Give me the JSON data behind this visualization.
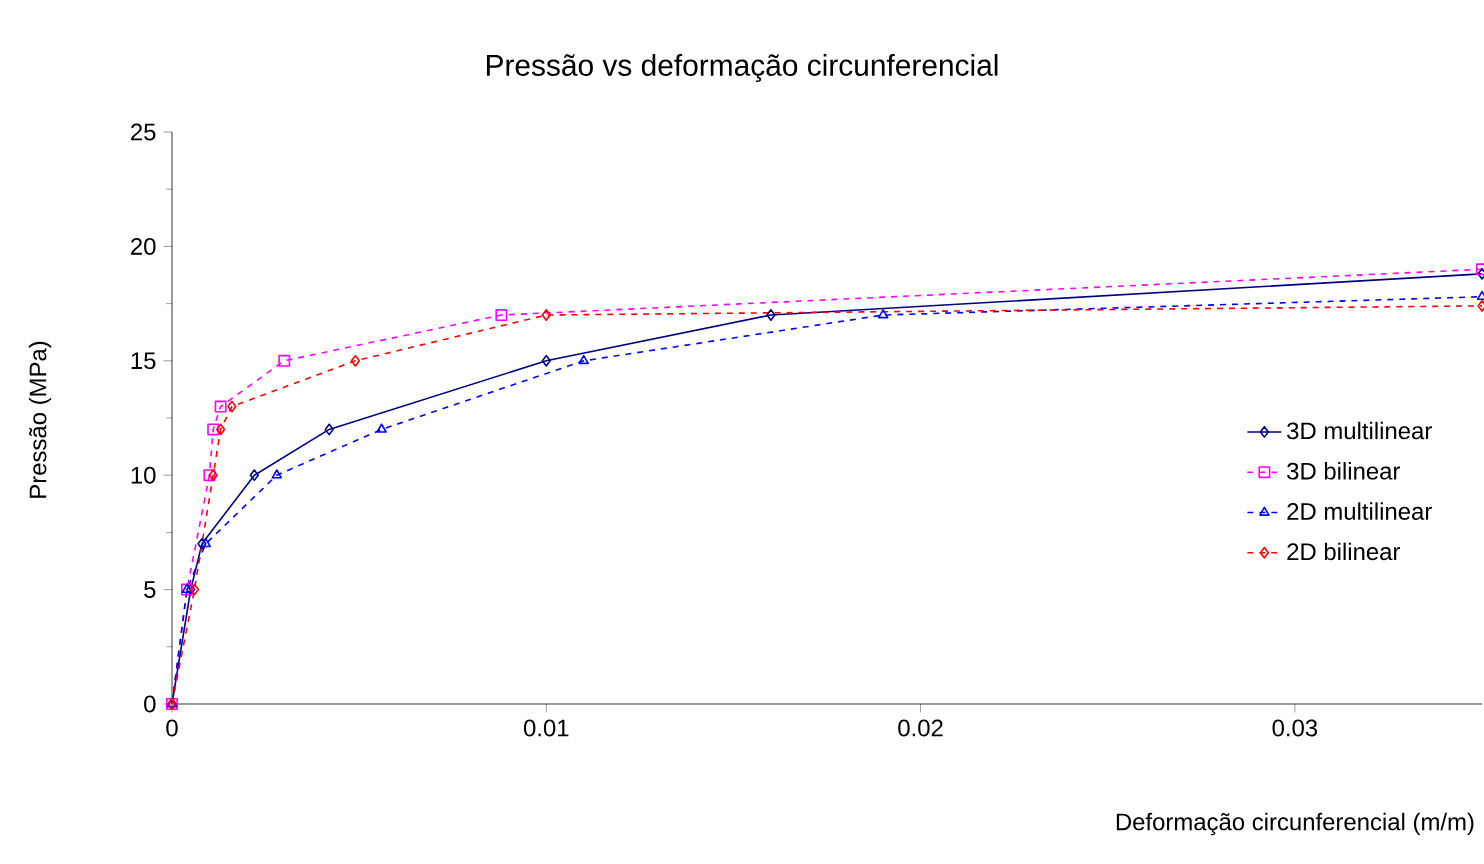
{
  "chart_data": {
    "type": "line",
    "title": "Pressão vs deformação circunferencial",
    "xlabel": "Deformação circunferencial (m/m)",
    "ylabel": "Pressão (MPa)",
    "xlim": [
      0,
      0.035
    ],
    "ylim": [
      0,
      25
    ],
    "xticks": [
      0,
      0.01,
      0.02,
      0.03
    ],
    "yticks": [
      0,
      5,
      10,
      15,
      20,
      25
    ],
    "grid": false,
    "legend": "right",
    "series": [
      {
        "name": "3D multilinear",
        "color": "#000080",
        "marker": "diamond",
        "line_style": "solid",
        "x": [
          0,
          0.0005,
          0.0008,
          0.0022,
          0.0042,
          0.01,
          0.016,
          0.035
        ],
        "values": [
          0,
          5,
          7,
          10,
          12,
          15,
          17,
          18.8
        ]
      },
      {
        "name": "3D bilinear",
        "color": "#ff00ff",
        "marker": "square",
        "line_style": "dashed",
        "x": [
          0,
          0.0004,
          0.001,
          0.0011,
          0.0013,
          0.003,
          0.0088,
          0.035
        ],
        "values": [
          0,
          5,
          10,
          12,
          13,
          15,
          17,
          19
        ]
      },
      {
        "name": "2D multilinear",
        "color": "#0000ff",
        "marker": "triangle",
        "line_style": "dashed",
        "x": [
          0,
          0.0004,
          0.0009,
          0.0028,
          0.0056,
          0.011,
          0.019,
          0.035
        ],
        "values": [
          0,
          5,
          7,
          10,
          12,
          15,
          17,
          17.8
        ]
      },
      {
        "name": "2D bilinear",
        "color": "#ff0000",
        "marker": "diamond",
        "line_style": "dashed",
        "x": [
          0,
          0.0006,
          0.0011,
          0.0013,
          0.0016,
          0.0049,
          0.01,
          0.035
        ],
        "values": [
          0,
          5,
          10,
          12,
          13,
          15,
          17,
          17.4
        ]
      }
    ]
  }
}
